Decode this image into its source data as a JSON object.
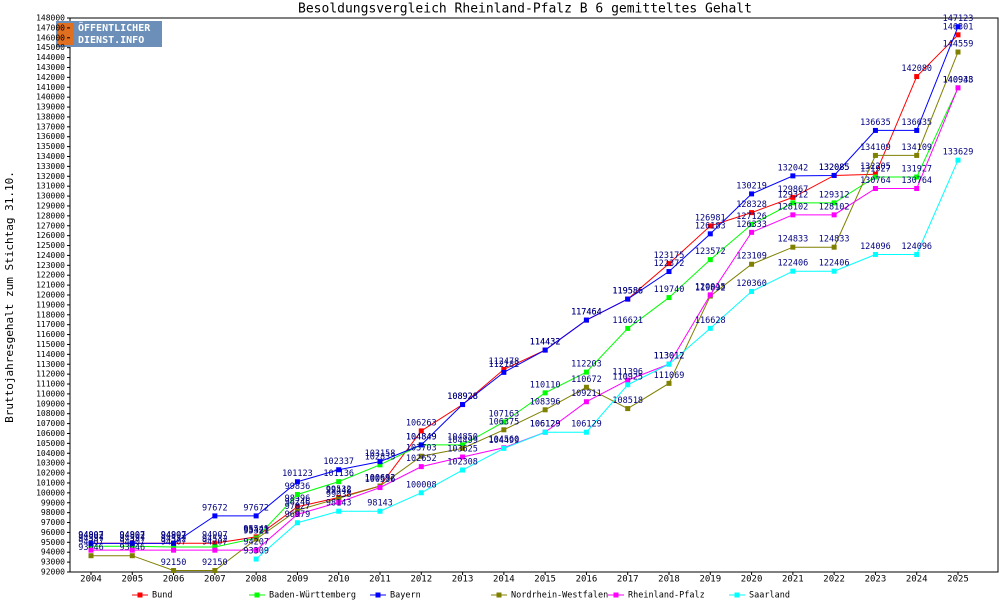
{
  "chart_data": {
    "type": "line",
    "title": "Besoldungsvergleich Rheinland-Pfalz B 6 gemitteltes Gehalt",
    "y_label": "Bruttojahresgehalt zum Stichtag 31.10.",
    "logo": [
      "ÖFFENTLICHER",
      "DIENST.INFO"
    ],
    "categories": [
      "2004",
      "2005",
      "2006",
      "2007",
      "2008",
      "2009",
      "2010",
      "2011",
      "2012",
      "2013",
      "2014",
      "2015",
      "2016",
      "2017",
      "2018",
      "2019",
      "2020",
      "2021",
      "2022",
      "2023",
      "2024",
      "2025"
    ],
    "series": [
      {
        "name": "Bund",
        "color": "#ff0000",
        "values": [
          94907,
          94907,
          94907,
          94907,
          95549,
          98596,
          99532,
          100692,
          106263,
          108928,
          112478,
          114432,
          117464,
          119586,
          123175,
          126981,
          128328,
          129867,
          132085,
          132205,
          142080,
          146301
        ]
      },
      {
        "name": "Baden-Württemberg",
        "color": "#00ff00",
        "values": [
          94597,
          94597,
          94532,
          94532,
          95421,
          99836,
          101136,
          102833,
          104849,
          104850,
          107163,
          110110,
          112203,
          116621,
          119740,
          123572,
          127126,
          129312,
          129312,
          131927,
          131927,
          140943
        ]
      },
      {
        "name": "Bayern",
        "color": "#0000ff",
        "values": [
          94892,
          94892,
          94892,
          97672,
          97672,
          101123,
          102337,
          103158,
          104849,
          108928,
          112182,
          114432,
          117464,
          119586,
          122372,
          126183,
          130219,
          132042,
          132085,
          136635,
          136635,
          147123
        ]
      },
      {
        "name": "Nordrhein-Westfalen",
        "color": "#808000",
        "values": [
          93646,
          93646,
          92150,
          92150,
          95321,
          98246,
          99448,
          100692,
          103703,
          104499,
          106375,
          108396,
          110672,
          108518,
          111069,
          119892,
          123109,
          124833,
          124833,
          134109,
          134109,
          144559
        ]
      },
      {
        "name": "Rheinland-Pfalz",
        "color": "#ff00ff",
        "values": [
          94207,
          94207,
          94207,
          94207,
          94207,
          97827,
          99038,
          100536,
          102652,
          103625,
          104560,
          106129,
          109211,
          111396,
          113012,
          120015,
          126333,
          128102,
          128102,
          130764,
          130764,
          140938
        ]
      },
      {
        "name": "Saarland",
        "color": "#00ffff",
        "values": [
          null,
          null,
          null,
          null,
          93309,
          96979,
          98143,
          98143,
          100008,
          102308,
          104499,
          106129,
          106129,
          110925,
          113012,
          116628,
          120360,
          122406,
          122406,
          124096,
          124096,
          133629
        ]
      }
    ],
    "ylim": [
      92000,
      148000
    ],
    "yticks": [
      92000,
      93000,
      94000,
      95000,
      96000,
      97000,
      98000,
      99000,
      100000,
      101000,
      102000,
      103000,
      104000,
      105000,
      106000,
      107000,
      108000,
      109000,
      110000,
      111000,
      112000,
      113000,
      114000,
      115000,
      116000,
      117000,
      118000,
      119000,
      120000,
      121000,
      122000,
      123000,
      124000,
      125000,
      126000,
      127000,
      128000,
      129000,
      130000,
      131000,
      132000,
      133000,
      134000,
      135000,
      136000,
      137000,
      138000,
      139000,
      140000,
      141000,
      142000,
      143000,
      144000,
      145000,
      146000,
      147000,
      148000
    ]
  }
}
